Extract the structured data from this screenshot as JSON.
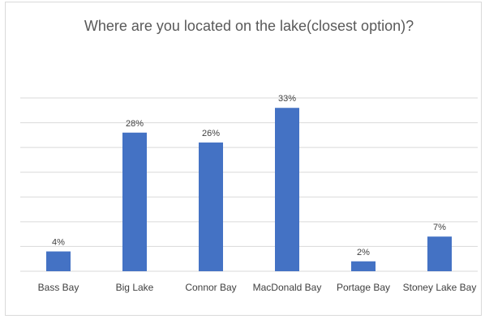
{
  "chart_data": {
    "type": "bar",
    "title": "Where are you located on the lake(closest option)?",
    "categories": [
      "Bass Bay",
      "Big Lake",
      "Connor Bay",
      "MacDonald Bay",
      "Portage Bay",
      "Stoney Lake Bay"
    ],
    "values": [
      4,
      28,
      26,
      33,
      2,
      7
    ],
    "data_labels": [
      "4%",
      "28%",
      "26%",
      "33%",
      "2%",
      "7%"
    ],
    "ylim": [
      0,
      35
    ],
    "grid": true,
    "bar_color": "#4472c4",
    "gridline_color": "#d9d9d9"
  }
}
